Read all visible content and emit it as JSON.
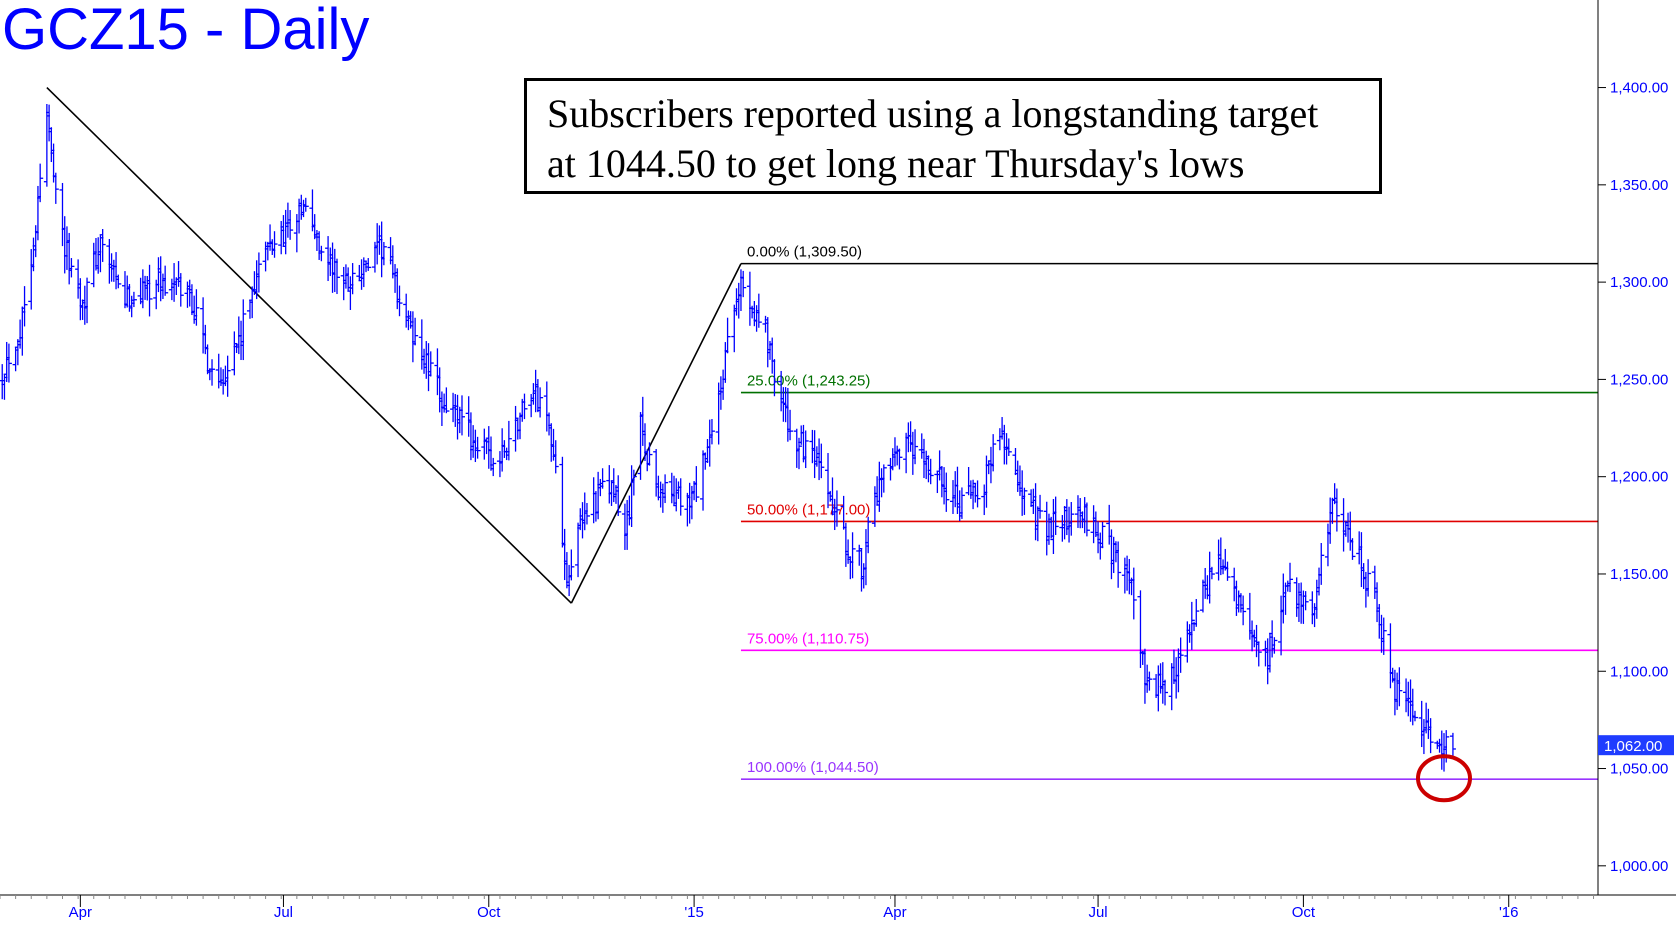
{
  "title": "GCZ15 - Daily",
  "note": {
    "line1": "Subscribers reported using a longstanding target",
    "line2": "at 1044.50 to get long near Thursday's lows"
  },
  "chart_data": {
    "type": "bar",
    "style": "OHLC daily bars",
    "title": "GCZ15 - Daily",
    "ylim": [
      985,
      1445
    ],
    "y_ticks": [
      1000,
      1050,
      1100,
      1150,
      1200,
      1250,
      1300,
      1350,
      1400
    ],
    "y_tick_labels": [
      "1,000.00",
      "1,050.00",
      "1,100.00",
      "1,150.00",
      "1,200.00",
      "1,250.00",
      "1,300.00",
      "1,350.00",
      "1,400.00"
    ],
    "x_range": [
      "2014-02-24",
      "2016-02-10"
    ],
    "x_ticks": [
      {
        "date": "2014-04-01",
        "label": "Apr"
      },
      {
        "date": "2014-07-01",
        "label": "Jul"
      },
      {
        "date": "2014-10-01",
        "label": "Oct"
      },
      {
        "date": "2015-01-01",
        "label": "'15"
      },
      {
        "date": "2015-04-01",
        "label": "Apr"
      },
      {
        "date": "2015-07-01",
        "label": "Jul"
      },
      {
        "date": "2015-10-01",
        "label": "Oct"
      },
      {
        "date": "2016-01-01",
        "label": "'16"
      }
    ],
    "last_price": 1062.0,
    "last_price_label": "1,062.00",
    "price_path": [
      [
        "2014-02-25",
        1255
      ],
      [
        "2014-03-05",
        1275
      ],
      [
        "2014-03-12",
        1330
      ],
      [
        "2014-03-17",
        1385
      ],
      [
        "2014-03-25",
        1318
      ],
      [
        "2014-04-02",
        1290
      ],
      [
        "2014-04-10",
        1320
      ],
      [
        "2014-04-20",
        1290
      ],
      [
        "2014-05-05",
        1300
      ],
      [
        "2014-05-20",
        1295
      ],
      [
        "2014-05-28",
        1260
      ],
      [
        "2014-06-02",
        1250
      ],
      [
        "2014-06-12",
        1272
      ],
      [
        "2014-06-20",
        1310
      ],
      [
        "2014-06-30",
        1325
      ],
      [
        "2014-07-10",
        1338
      ],
      [
        "2014-07-20",
        1312
      ],
      [
        "2014-07-28",
        1300
      ],
      [
        "2014-08-05",
        1305
      ],
      [
        "2014-08-15",
        1318
      ],
      [
        "2014-08-25",
        1280
      ],
      [
        "2014-09-10",
        1240
      ],
      [
        "2014-09-25",
        1218
      ],
      [
        "2014-10-05",
        1205
      ],
      [
        "2014-10-20",
        1245
      ],
      [
        "2014-10-28",
        1230
      ],
      [
        "2014-11-05",
        1150
      ],
      [
        "2014-11-14",
        1185
      ],
      [
        "2014-11-25",
        1195
      ],
      [
        "2014-12-01",
        1170
      ],
      [
        "2014-12-08",
        1225
      ],
      [
        "2014-12-15",
        1195
      ],
      [
        "2014-12-30",
        1185
      ],
      [
        "2015-01-08",
        1215
      ],
      [
        "2015-01-15",
        1260
      ],
      [
        "2015-01-22",
        1300
      ],
      [
        "2015-02-02",
        1275
      ],
      [
        "2015-02-12",
        1225
      ],
      [
        "2015-02-25",
        1205
      ],
      [
        "2015-03-10",
        1165
      ],
      [
        "2015-03-17",
        1155
      ],
      [
        "2015-03-25",
        1195
      ],
      [
        "2015-04-06",
        1215
      ],
      [
        "2015-04-20",
        1200
      ],
      [
        "2015-05-01",
        1185
      ],
      [
        "2015-05-10",
        1195
      ],
      [
        "2015-05-18",
        1225
      ],
      [
        "2015-05-28",
        1190
      ],
      [
        "2015-06-08",
        1175
      ],
      [
        "2015-06-25",
        1180
      ],
      [
        "2015-07-05",
        1165
      ],
      [
        "2015-07-15",
        1150
      ],
      [
        "2015-07-22",
        1095
      ],
      [
        "2015-07-31",
        1090
      ],
      [
        "2015-08-10",
        1115
      ],
      [
        "2015-08-24",
        1160
      ],
      [
        "2015-09-05",
        1125
      ],
      [
        "2015-09-14",
        1105
      ],
      [
        "2015-09-25",
        1145
      ],
      [
        "2015-10-05",
        1130
      ],
      [
        "2015-10-14",
        1185
      ],
      [
        "2015-10-23",
        1165
      ],
      [
        "2015-11-02",
        1138
      ],
      [
        "2015-11-10",
        1090
      ],
      [
        "2015-11-24",
        1070
      ],
      [
        "2015-12-03",
        1060
      ],
      [
        "2015-12-07",
        1062
      ]
    ],
    "trendlines": [
      {
        "from": [
          "2014-03-17",
          1400
        ],
        "to": [
          "2014-11-07",
          1135
        ]
      },
      {
        "from": [
          "2014-11-07",
          1135
        ],
        "to": [
          "2015-01-22",
          1309.5
        ]
      }
    ],
    "fibonacci": {
      "start_date": "2015-01-22",
      "levels": [
        {
          "label": "0.00% (1,309.50)",
          "value": 1309.5,
          "color": "#000000"
        },
        {
          "label": "25.00% (1,243.25)",
          "value": 1243.25,
          "color": "#007000"
        },
        {
          "label": "50.00% (1,177.00)",
          "value": 1177.0,
          "color": "#e00000"
        },
        {
          "label": "75.00% (1,110.75)",
          "value": 1110.75,
          "color": "#ff00ff"
        },
        {
          "label": "100.00% (1,044.50)",
          "value": 1044.5,
          "color": "#9933ff"
        }
      ]
    },
    "annotation_circle": {
      "date": "2015-12-03",
      "value": 1045,
      "color": "#cc0000"
    },
    "colors": {
      "bars": "#0000ff",
      "axis_text": "#0000ff",
      "title": "#0000ff"
    }
  }
}
